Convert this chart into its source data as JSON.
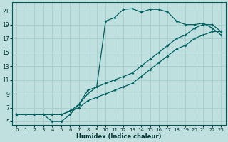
{
  "xlabel": "Humidex (Indice chaleur)",
  "bg_color": "#c0e0e0",
  "grid_color": "#a8d0d0",
  "line_color": "#006060",
  "xlim": [
    -0.5,
    23.5
  ],
  "ylim": [
    4.5,
    22.2
  ],
  "xticks": [
    0,
    1,
    2,
    3,
    4,
    5,
    6,
    7,
    8,
    9,
    10,
    11,
    12,
    13,
    14,
    15,
    16,
    17,
    18,
    19,
    20,
    21,
    22,
    23
  ],
  "yticks": [
    5,
    7,
    9,
    11,
    13,
    15,
    17,
    19,
    21
  ],
  "lines": [
    {
      "x": [
        0,
        1,
        2,
        3,
        4,
        5,
        6,
        7,
        8,
        9,
        10,
        11,
        12,
        13,
        14,
        15,
        16,
        17,
        18,
        19,
        20,
        21,
        22,
        23
      ],
      "y": [
        6,
        6,
        6,
        6,
        5,
        5,
        6,
        7.5,
        9.5,
        10,
        19.5,
        20,
        21.2,
        21.3,
        20.8,
        21.2,
        21.2,
        20.8,
        19.5,
        19,
        19,
        19.2,
        18.5,
        17.5
      ]
    },
    {
      "x": [
        0,
        3,
        4,
        5,
        6,
        7,
        8,
        9,
        10,
        11,
        12,
        13,
        14,
        15,
        16,
        17,
        18,
        19,
        20,
        21,
        22,
        23
      ],
      "y": [
        6,
        6,
        6,
        6,
        6.5,
        7,
        8,
        8.5,
        9,
        9.5,
        10,
        10.5,
        11.5,
        12.5,
        13.5,
        14.5,
        15.5,
        16,
        17,
        17.5,
        18,
        18
      ]
    },
    {
      "x": [
        0,
        3,
        4,
        5,
        6,
        7,
        8,
        9,
        10,
        11,
        12,
        13,
        14,
        15,
        16,
        17,
        18,
        19,
        20,
        21,
        22,
        23
      ],
      "y": [
        6,
        6,
        6,
        6,
        6.5,
        7.5,
        9,
        10,
        10.5,
        11,
        11.5,
        12,
        13,
        14,
        15,
        16,
        17,
        17.5,
        18.5,
        19,
        19,
        18
      ]
    }
  ]
}
